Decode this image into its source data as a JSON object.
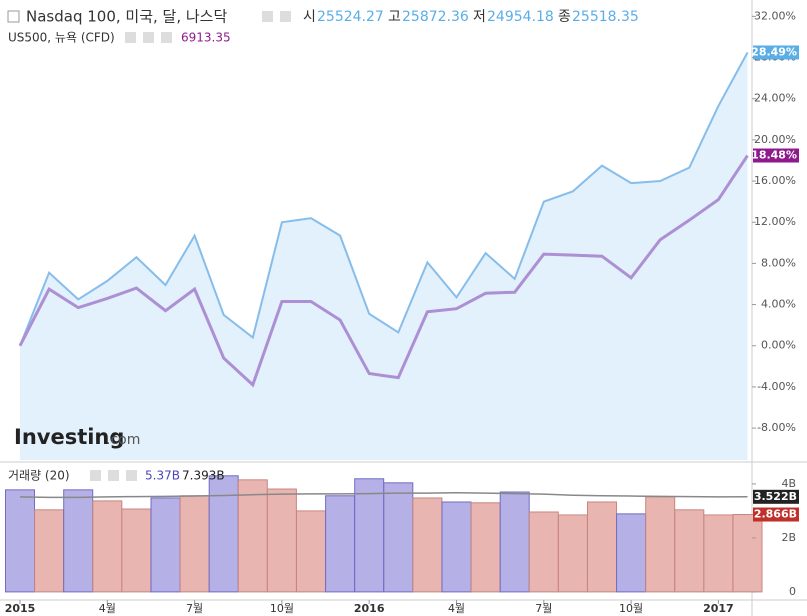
{
  "chart_data": [
    {
      "type": "line",
      "categories": [
        "2015",
        null,
        null,
        "4월",
        null,
        null,
        "7월",
        null,
        null,
        "10월",
        null,
        null,
        "2016",
        null,
        null,
        "4월",
        null,
        null,
        "7월",
        null,
        null,
        "10월",
        null,
        null,
        "2017",
        null
      ],
      "series": [
        {
          "name": "Nasdaq 100, 미국, 달, 나스닥",
          "color": "#86bdea",
          "fill": "#e2f1fb",
          "label_color": "#5aaee8",
          "ohlc": [
            {
              "label": "시",
              "value": 25524.27
            },
            {
              "label": "고",
              "value": 25872.36
            },
            {
              "label": "저",
              "value": 24954.18
            },
            {
              "label": "종",
              "value": 25518.35
            }
          ],
          "values": [
            0,
            7.1,
            4.5,
            6.3,
            8.6,
            5.9,
            10.7,
            3.0,
            0.8,
            12.0,
            12.4,
            10.7,
            3.1,
            1.3,
            8.1,
            4.7,
            9.0,
            6.5,
            14.0,
            15.0,
            17.5,
            15.8,
            16.0,
            17.3,
            23.3,
            28.49
          ],
          "last_label": "28.49%"
        },
        {
          "name": "US500, 뉴욕 (CFD)",
          "color": "#ad8fd3",
          "label_color": "#8e1a8e",
          "last_price": 6913.35,
          "values": [
            0,
            5.5,
            3.7,
            4.6,
            5.6,
            3.4,
            5.5,
            -1.2,
            -3.8,
            4.3,
            4.3,
            2.5,
            -2.7,
            -3.1,
            3.3,
            3.6,
            5.1,
            5.2,
            8.9,
            8.8,
            8.7,
            6.6,
            10.3,
            12.2,
            14.2,
            18.48
          ],
          "last_label": "18.48%"
        }
      ],
      "ylim": [
        -11.1,
        33.2
      ],
      "yticks": [
        {
          "value": 32,
          "label": "32.00%"
        },
        {
          "value": 28,
          "label": "28.00%"
        },
        {
          "value": 24,
          "label": "24.00%"
        },
        {
          "value": 20,
          "label": "20.00%"
        },
        {
          "value": 16,
          "label": "16.00%"
        },
        {
          "value": 12,
          "label": "12.00%"
        },
        {
          "value": 8,
          "label": "8.00%"
        },
        {
          "value": 4,
          "label": "4.00%"
        },
        {
          "value": 0,
          "label": "0.00%"
        },
        {
          "value": -4,
          "label": "-4.00%"
        },
        {
          "value": -8,
          "label": "-8.00%"
        }
      ],
      "logo": {
        "text": "Investing",
        "suffix": ".com"
      }
    },
    {
      "type": "bar",
      "title": "거래량 (20)",
      "header_values": [
        "5.37B",
        "7.393B"
      ],
      "values": [
        3.78,
        3.04,
        3.78,
        3.37,
        3.07,
        3.48,
        3.56,
        4.3,
        4.15,
        3.81,
        3.0,
        3.56,
        4.19,
        4.04,
        3.48,
        3.33,
        3.3,
        3.7,
        2.96,
        2.85,
        3.33,
        2.89,
        3.52,
        3.04,
        2.85,
        2.866
      ],
      "colors": [
        "#b5b1e6",
        "#e8b5b1",
        "#b5b1e6",
        "#e8b5b1",
        "#e8b5b1",
        "#b5b1e6",
        "#e8b5b1",
        "#b5b1e6",
        "#e8b5b1",
        "#e8b5b1",
        "#e8b5b1",
        "#b5b1e6",
        "#b5b1e6",
        "#b5b1e6",
        "#e8b5b1",
        "#b5b1e6",
        "#e8b5b1",
        "#b5b1e6",
        "#e8b5b1",
        "#e8b5b1",
        "#e8b5b1",
        "#b5b1e6",
        "#e8b5b1",
        "#e8b5b1",
        "#e8b5b1",
        "#e8b5b1"
      ],
      "last_label": "2.866B",
      "last_label_color": "#c0302a",
      "ma_values": [
        3.52,
        3.5,
        3.5,
        3.52,
        3.53,
        3.54,
        3.55,
        3.57,
        3.6,
        3.62,
        3.63,
        3.63,
        3.64,
        3.66,
        3.66,
        3.67,
        3.66,
        3.64,
        3.62,
        3.58,
        3.56,
        3.55,
        3.54,
        3.53,
        3.52,
        3.522
      ],
      "ma_color": "#888888",
      "ma_last_label": "3.522B",
      "ylim": [
        -0.3,
        4.7
      ],
      "yticks": [
        {
          "value": 4,
          "label": "4B"
        },
        {
          "value": 2,
          "label": "2B"
        },
        0
      ]
    }
  ]
}
